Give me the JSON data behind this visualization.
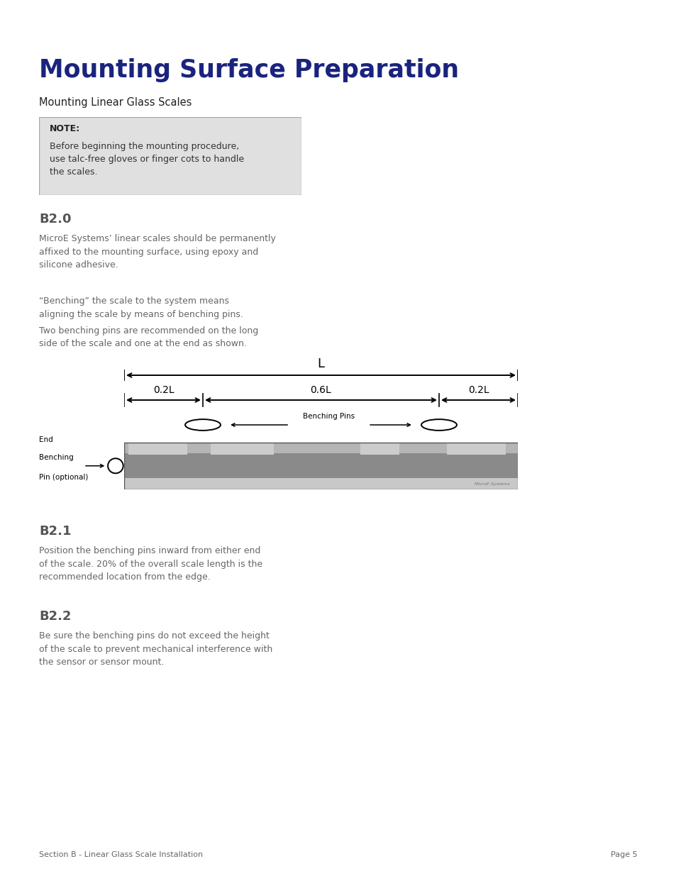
{
  "title": "Mounting Surface Preparation",
  "subtitle": "Mounting Linear Glass Scales",
  "title_color": "#1a237e",
  "note_title": "NOTE:",
  "note_text": "Before beginning the mounting procedure,\nuse talc-free gloves or finger cots to handle\nthe scales.",
  "note_bg": "#e0e0e0",
  "note_border": "#aaaaaa",
  "section_b20_title": "B2.0",
  "section_b20_text": "MicroE Systems’ linear scales should be permanently\naffixed to the mounting surface, using epoxy and\nsilicone adhesive.",
  "section_b20_text2": "“Benching” the scale to the system means\naligning the scale by means of benching pins.",
  "section_b20_text3": "Two benching pins are recommended on the long\nside of the scale and one at the end as shown.",
  "section_b21_title": "B2.1",
  "section_b21_text": "Position the benching pins inward from either end\nof the scale. 20% of the overall scale length is the\nrecommended location from the edge.",
  "section_b22_title": "B2.2",
  "section_b22_text": "Be sure the benching pins do not exceed the height\nof the scale to prevent mechanical interference with\nthe sensor or sensor mount.",
  "footer_left": "Section B - Linear Glass Scale Installation",
  "footer_right": "Page 5",
  "microe_label": "MicroE Systems",
  "body_color": "#666666",
  "heading_color": "#555555",
  "background_color": "#ffffff"
}
